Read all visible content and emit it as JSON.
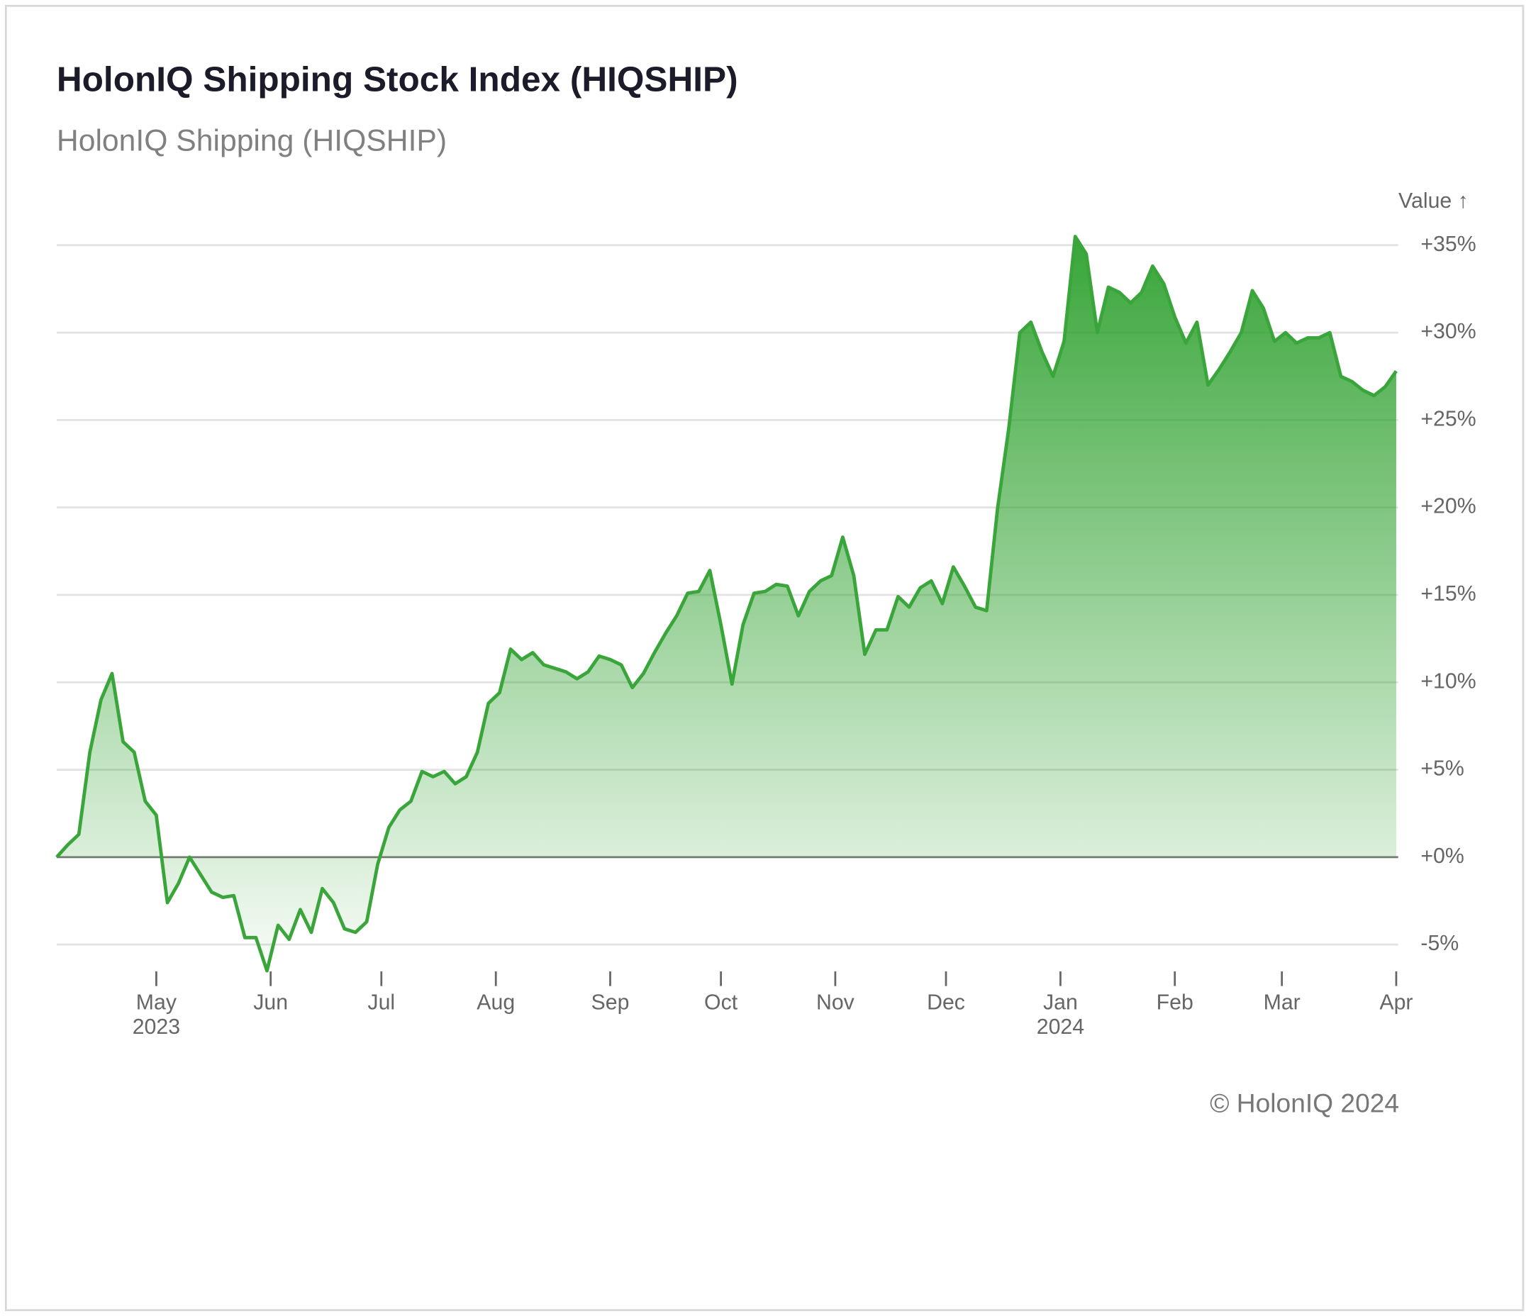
{
  "chart_data": {
    "type": "area",
    "title": "HolonIQ Shipping Stock Index (HIQSHIP)",
    "subtitle": "HolonIQ Shipping (HIQSHIP)",
    "y_label": "Value ↑",
    "footer": "© HolonIQ 2024",
    "color": "#3aa53a",
    "xlim": [
      0,
      121
    ],
    "ylim": [
      -7,
      36
    ],
    "grid": true,
    "yticks": [
      {
        "value": -5,
        "label": "-5%"
      },
      {
        "value": 0,
        "label": "+0%"
      },
      {
        "value": 5,
        "label": "+5%"
      },
      {
        "value": 10,
        "label": "+10%"
      },
      {
        "value": 15,
        "label": "+15%"
      },
      {
        "value": 20,
        "label": "+20%"
      },
      {
        "value": 25,
        "label": "+25%"
      },
      {
        "value": 30,
        "label": "+30%"
      },
      {
        "value": 35,
        "label": "+35%"
      }
    ],
    "xticks": [
      {
        "value": 9,
        "label": "May"
      },
      {
        "value": 19.33,
        "label": "Jun"
      },
      {
        "value": 29.33,
        "label": "Jul"
      },
      {
        "value": 39.67,
        "label": "Aug"
      },
      {
        "value": 50,
        "label": "Sep"
      },
      {
        "value": 60,
        "label": "Oct"
      },
      {
        "value": 70.33,
        "label": "Nov"
      },
      {
        "value": 80.33,
        "label": "Dec"
      },
      {
        "value": 90.67,
        "label": "Jan"
      },
      {
        "value": 101,
        "label": "Feb"
      },
      {
        "value": 110.67,
        "label": "Mar"
      },
      {
        "value": 121,
        "label": "Apr"
      }
    ],
    "year_labels": [
      {
        "value": 9,
        "label": "2023"
      },
      {
        "value": 90.67,
        "label": "2024"
      }
    ],
    "values": [
      0,
      0.7,
      1.3,
      6,
      9,
      10.5,
      6.6,
      6,
      3.2,
      2.4,
      -2.6,
      -1.5,
      0,
      -1,
      -2,
      -2.3,
      -2.2,
      -4.6,
      -4.6,
      -6.5,
      -3.9,
      -4.7,
      -3,
      -4.3,
      -1.8,
      -2.6,
      -4.1,
      -4.3,
      -3.7,
      -0.4,
      1.7,
      2.7,
      3.2,
      4.9,
      4.6,
      4.9,
      4.2,
      4.6,
      6,
      8.8,
      9.4,
      11.9,
      11.3,
      11.7,
      11,
      10.8,
      10.6,
      10.2,
      10.6,
      11.5,
      11.3,
      11,
      9.7,
      10.5,
      11.7,
      12.8,
      13.8,
      15.1,
      15.2,
      16.4,
      13.3,
      9.9,
      13.3,
      15.1,
      15.2,
      15.6,
      15.5,
      13.8,
      15.2,
      15.8,
      16.1,
      18.3,
      16.1,
      11.6,
      13,
      13,
      14.9,
      14.3,
      15.4,
      15.8,
      14.5,
      16.6,
      15.5,
      14.3,
      14.1,
      20,
      24.5,
      30,
      30.6,
      28.9,
      27.5,
      29.5,
      35.5,
      34.5,
      30,
      32.6,
      32.3,
      31.7,
      32.3,
      33.8,
      32.8,
      30.9,
      29.4,
      30.6,
      27,
      27.9,
      28.9,
      30,
      32.4,
      31.4,
      29.5,
      30,
      29.4,
      29.7,
      29.7,
      30,
      27.5,
      27.2,
      26.7,
      26.4,
      26.9,
      27.8
    ]
  }
}
